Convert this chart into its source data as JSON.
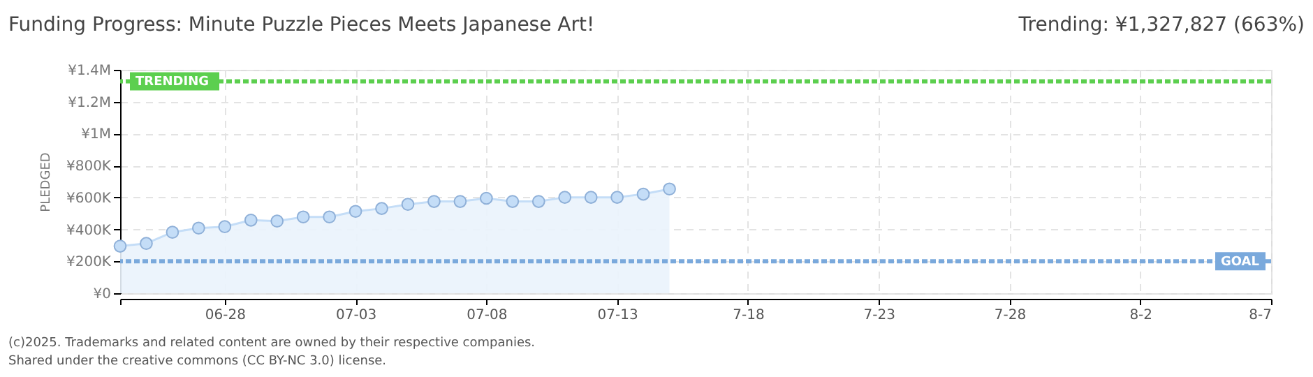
{
  "chart_data": {
    "type": "area",
    "title": "Funding Progress: Minute Puzzle Pieces Meets Japanese Art!",
    "subtitle": "Trending: ¥1,327,827 (663%)",
    "ylabel": "PLEDGED",
    "x": [
      "2025-06-24",
      "2025-06-25",
      "2025-06-26",
      "2025-06-27",
      "2025-06-28",
      "2025-06-29",
      "2025-06-30",
      "2025-07-01",
      "2025-07-02",
      "2025-07-03",
      "2025-07-04",
      "2025-07-05",
      "2025-07-06",
      "2025-07-07",
      "2025-07-08",
      "2025-07-09",
      "2025-07-10",
      "2025-07-11",
      "2025-07-12",
      "2025-07-13",
      "2025-07-14",
      "2025-07-15"
    ],
    "series": [
      {
        "color": "#c4ddf7",
        "values": [
          295000,
          312000,
          382000,
          408000,
          417000,
          458000,
          452000,
          478000,
          478000,
          513000,
          531000,
          557000,
          575000,
          575000,
          595000,
          575000,
          575000,
          601000,
          601000,
          601000,
          621000,
          653000
        ]
      }
    ],
    "xlim": [
      "2025-06-24",
      "2025-08-07"
    ],
    "xticks": [
      {
        "value": "2025-06-24",
        "label": null
      },
      {
        "value": "2025-06-28",
        "label": "06-28"
      },
      {
        "value": "2025-07-03",
        "label": "07-03"
      },
      {
        "value": "2025-07-08",
        "label": "07-08"
      },
      {
        "value": "2025-07-13",
        "label": "07-13"
      },
      {
        "value": "2025-07-18",
        "label": "7-18"
      },
      {
        "value": "2025-07-23",
        "label": "7-23"
      },
      {
        "value": "2025-07-28",
        "label": "7-28"
      },
      {
        "value": "2025-08-02",
        "label": "8-2"
      },
      {
        "value": "2025-08-07",
        "label": "8-7"
      }
    ],
    "ylim": [
      0,
      1400000
    ],
    "yticks": [
      {
        "value": 0,
        "label": "¥0"
      },
      {
        "value": 200000,
        "label": "¥200K"
      },
      {
        "value": 400000,
        "label": "¥400K"
      },
      {
        "value": 600000,
        "label": "¥600K"
      },
      {
        "value": 800000,
        "label": "¥800K"
      },
      {
        "value": 1000000,
        "label": "¥1M"
      },
      {
        "value": 1200000,
        "label": "¥1.2M"
      },
      {
        "value": 1400000,
        "label": "¥1.4M"
      }
    ],
    "ref_lines": [
      {
        "axis": "y",
        "value": 1327827,
        "label": "TRENDING",
        "color": "#5ccf4f",
        "line_style": "dotted"
      },
      {
        "axis": "y",
        "value": 200000,
        "label": "GOAL",
        "color": "#7aa9dc",
        "line_style": "dotted"
      }
    ],
    "annotations": [
      "(c)2025. Trademarks and related content are owned by their respective companies.",
      "Shared under the creative commons (CC BY-NC 3.0) license."
    ],
    "grid": true,
    "marker": "circle",
    "line_style": "solid"
  }
}
